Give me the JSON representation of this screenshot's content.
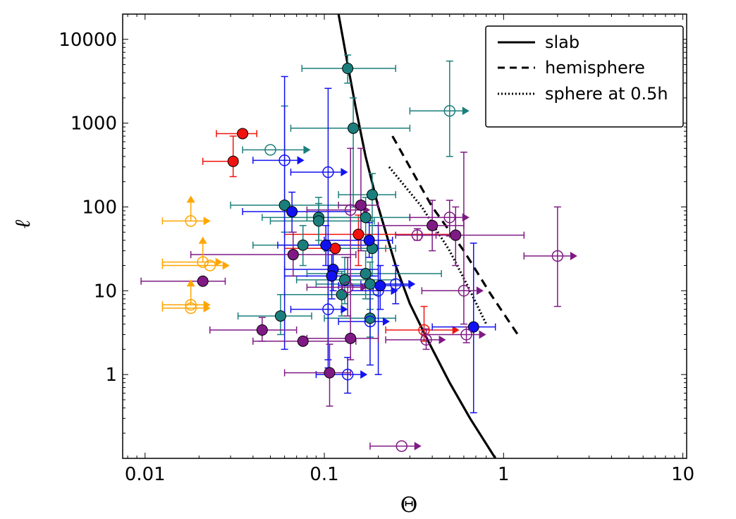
{
  "chart_data": {
    "type": "scatter",
    "xlabel": "Θ",
    "ylabel": "ℓ",
    "xscale": "log",
    "yscale": "log",
    "xlim": [
      0.0075,
      10.5
    ],
    "ylim": [
      0.1,
      20000
    ],
    "grid": false,
    "legend_position": "top-right",
    "x_tick_labels": [
      {
        "value": 0.01,
        "label": "0.01"
      },
      {
        "value": 0.1,
        "label": "0.1"
      },
      {
        "value": 1,
        "label": "1"
      },
      {
        "value": 10,
        "label": "10"
      }
    ],
    "y_tick_labels": [
      {
        "value": 1,
        "label": "1"
      },
      {
        "value": 10,
        "label": "10"
      },
      {
        "value": 100,
        "label": "100"
      },
      {
        "value": 1000,
        "label": "1000"
      },
      {
        "value": 10000,
        "label": "10000"
      }
    ],
    "lines": [
      {
        "name": "slab",
        "style": "solid",
        "x": [
          0.12,
          0.135,
          0.15,
          0.17,
          0.2,
          0.25,
          0.3,
          0.38,
          0.5,
          0.65,
          0.9
        ],
        "y": [
          20000,
          5000,
          1500,
          400,
          100,
          20,
          7,
          2.5,
          0.8,
          0.3,
          0.1
        ]
      },
      {
        "name": "hemisphere",
        "style": "dashed",
        "x": [
          0.24,
          0.4,
          0.6,
          0.85,
          1.2
        ],
        "y": [
          700,
          100,
          30,
          9,
          3
        ]
      },
      {
        "name": "sphere at 0.5h",
        "style": "dotted",
        "x": [
          0.23,
          0.35,
          0.5,
          0.65,
          0.8
        ],
        "y": [
          300,
          100,
          30,
          10,
          4
        ]
      }
    ],
    "colors": {
      "red": "#f0140e",
      "teal": "#1a7f7c",
      "blue": "#1212f0",
      "purple": "#7f1a84",
      "orange": "#ffa500"
    },
    "points": [
      {
        "x": 0.035,
        "y": 750,
        "c": "red",
        "f": true,
        "xe": [
          0.025,
          0.042
        ],
        "ye": null,
        "ax": false,
        "ay": false
      },
      {
        "x": 0.031,
        "y": 350,
        "c": "red",
        "f": true,
        "xe": [
          0.021,
          0.031
        ],
        "ye": [
          230,
          700
        ],
        "ax": false,
        "ay": false
      },
      {
        "x": 0.115,
        "y": 32,
        "c": "red",
        "f": true,
        "xe": [
          0.06,
          0.22
        ],
        "ye": null,
        "ax": false,
        "ay": false
      },
      {
        "x": 0.155,
        "y": 47,
        "c": "red",
        "f": true,
        "xe": [
          0.06,
          0.5
        ],
        "ye": [
          20,
          80
        ],
        "ax": false,
        "ay": false
      },
      {
        "x": 0.36,
        "y": 3.4,
        "c": "red",
        "f": false,
        "xe": [
          0.22,
          0.44
        ],
        "ye": [
          2.5,
          6.5
        ],
        "ax": true,
        "ay": false
      },
      {
        "x": 0.135,
        "y": 4500,
        "c": "teal",
        "f": true,
        "xe": [
          0.075,
          0.25
        ],
        "ye": [
          3000,
          6500
        ],
        "ax": false,
        "ay": false
      },
      {
        "x": 0.145,
        "y": 870,
        "c": "teal",
        "f": true,
        "xe": [
          0.065,
          0.3
        ],
        "ye": [
          100,
          2000
        ],
        "ax": false,
        "ay": false
      },
      {
        "x": 0.06,
        "y": 105,
        "c": "teal",
        "f": true,
        "xe": [
          0.03,
          0.14
        ],
        "ye": [
          50,
          1600
        ],
        "ax": false,
        "ay": false
      },
      {
        "x": 0.093,
        "y": 75,
        "c": "teal",
        "f": true,
        "xe": [
          0.045,
          0.17
        ],
        "ye": [
          40,
          130
        ],
        "ax": false,
        "ay": false
      },
      {
        "x": 0.093,
        "y": 68,
        "c": "teal",
        "f": true,
        "xe": [
          0.05,
          0.19
        ],
        "ye": [
          35,
          110
        ],
        "ax": false,
        "ay": false
      },
      {
        "x": 0.076,
        "y": 35,
        "c": "teal",
        "f": true,
        "xe": [
          0.04,
          0.16
        ],
        "ye": [
          20,
          60
        ],
        "ax": false,
        "ay": false
      },
      {
        "x": 0.17,
        "y": 75,
        "c": "teal",
        "f": true,
        "xe": [
          0.08,
          0.3
        ],
        "ye": [
          40,
          130
        ],
        "ax": false,
        "ay": false
      },
      {
        "x": 0.185,
        "y": 140,
        "c": "teal",
        "f": true,
        "xe": [
          0.12,
          0.25
        ],
        "ye": [
          60,
          250
        ],
        "ax": false,
        "ay": false
      },
      {
        "x": 0.185,
        "y": 32,
        "c": "teal",
        "f": true,
        "xe": [
          0.1,
          0.25
        ],
        "ye": [
          15,
          60
        ],
        "ax": false,
        "ay": false
      },
      {
        "x": 0.17,
        "y": 16,
        "c": "teal",
        "f": true,
        "xe": [
          0.08,
          0.45
        ],
        "ye": [
          8,
          30
        ],
        "ax": false,
        "ay": false
      },
      {
        "x": 0.13,
        "y": 13.5,
        "c": "teal",
        "f": true,
        "xe": [
          0.07,
          0.25
        ],
        "ye": [
          7,
          25
        ],
        "ax": false,
        "ay": false
      },
      {
        "x": 0.125,
        "y": 9,
        "c": "teal",
        "f": true,
        "xe": [
          0.06,
          0.2
        ],
        "ye": [
          5,
          17
        ],
        "ax": false,
        "ay": false
      },
      {
        "x": 0.18,
        "y": 12,
        "c": "teal",
        "f": true,
        "xe": [
          0.09,
          0.3
        ],
        "ye": [
          6,
          22
        ],
        "ax": false,
        "ay": false
      },
      {
        "x": 0.057,
        "y": 5,
        "c": "teal",
        "f": true,
        "xe": [
          0.033,
          0.085
        ],
        "ye": [
          3,
          9
        ],
        "ax": false,
        "ay": false
      },
      {
        "x": 0.18,
        "y": 4.7,
        "c": "teal",
        "f": true,
        "xe": [
          0.1,
          0.25
        ],
        "ye": [
          2.8,
          8
        ],
        "ax": false,
        "ay": false
      },
      {
        "x": 0.05,
        "y": 480,
        "c": "teal",
        "f": false,
        "xe": [
          0.035,
          0.065
        ],
        "ye": null,
        "ax": true,
        "ay": false
      },
      {
        "x": 0.5,
        "y": 1400,
        "c": "teal",
        "f": false,
        "xe": [
          0.3,
          0.5
        ],
        "ye": [
          400,
          5500
        ],
        "ax": true,
        "ay": false
      },
      {
        "x": 0.066,
        "y": 88,
        "c": "blue",
        "f": true,
        "xe": [
          0.035,
          0.14
        ],
        "ye": [
          50,
          150
        ],
        "ax": false,
        "ay": false
      },
      {
        "x": 0.102,
        "y": 35,
        "c": "blue",
        "f": true,
        "xe": [
          0.055,
          0.2
        ],
        "ye": [
          20,
          60
        ],
        "ax": false,
        "ay": false
      },
      {
        "x": 0.178,
        "y": 40,
        "c": "blue",
        "f": true,
        "xe": [
          0.1,
          0.24
        ],
        "ye": [
          25,
          65
        ],
        "ax": false,
        "ay": false
      },
      {
        "x": 0.112,
        "y": 18,
        "c": "blue",
        "f": true,
        "xe": [
          0.06,
          0.2
        ],
        "ye": [
          10,
          30
        ],
        "ax": false,
        "ay": false
      },
      {
        "x": 0.11,
        "y": 15,
        "c": "blue",
        "f": true,
        "xe": [
          0.06,
          0.2
        ],
        "ye": [
          8,
          27
        ],
        "ax": false,
        "ay": false
      },
      {
        "x": 0.205,
        "y": 11.5,
        "c": "blue",
        "f": true,
        "xe": [
          0.12,
          0.3
        ],
        "ye": [
          6,
          20
        ],
        "ax": false,
        "ay": false
      },
      {
        "x": 0.68,
        "y": 3.7,
        "c": "blue",
        "f": true,
        "xe": [
          0.4,
          0.9
        ],
        "ye": [
          0.35,
          37
        ],
        "ax": false,
        "ay": false
      },
      {
        "x": 0.06,
        "y": 360,
        "c": "blue",
        "f": false,
        "xe": [
          0.04,
          0.06
        ],
        "ye": [
          2,
          3600
        ],
        "ax": true,
        "ay": false
      },
      {
        "x": 0.105,
        "y": 260,
        "c": "blue",
        "f": false,
        "xe": [
          0.065,
          0.105
        ],
        "ye": [
          1.5,
          2600
        ],
        "ax": true,
        "ay": false
      },
      {
        "x": 0.105,
        "y": 6,
        "c": "blue",
        "f": false,
        "xe": [
          0.065,
          0.105
        ],
        "ye": [
          1.2,
          30
        ],
        "ax": true,
        "ay": false
      },
      {
        "x": 0.18,
        "y": 4.3,
        "c": "blue",
        "f": false,
        "xe": [
          0.12,
          0.18
        ],
        "ye": [
          1.3,
          15
        ],
        "ax": true,
        "ay": false
      },
      {
        "x": 0.135,
        "y": 1,
        "c": "blue",
        "f": false,
        "xe": [
          0.09,
          0.135
        ],
        "ye": [
          0.6,
          1.6
        ],
        "ax": true,
        "ay": false
      },
      {
        "x": 0.25,
        "y": 12,
        "c": "blue",
        "f": false,
        "xe": [
          0.16,
          0.25
        ],
        "ye": [
          7,
          20
        ],
        "ax": true,
        "ay": false
      },
      {
        "x": 0.2,
        "y": 10,
        "c": "blue",
        "f": false,
        "xe": [
          0.14,
          0.2
        ],
        "ye": [
          1,
          60
        ],
        "ax": true,
        "ay": false
      },
      {
        "x": 0.021,
        "y": 13,
        "c": "purple",
        "f": true,
        "xe": [
          0.0095,
          0.028
        ],
        "ye": null,
        "ax": false,
        "ay": false
      },
      {
        "x": 0.067,
        "y": 27,
        "c": "purple",
        "f": true,
        "xe": [
          0.018,
          0.15
        ],
        "ye": [
          15,
          50
        ],
        "ax": false,
        "ay": false
      },
      {
        "x": 0.045,
        "y": 3.4,
        "c": "purple",
        "f": true,
        "xe": [
          0.023,
          0.07
        ],
        "ye": [
          2.5,
          4.8
        ],
        "ax": false,
        "ay": false
      },
      {
        "x": 0.076,
        "y": 2.5,
        "c": "purple",
        "f": true,
        "xe": [
          0.04,
          0.15
        ],
        "ye": null,
        "ax": false,
        "ay": false
      },
      {
        "x": 0.14,
        "y": 2.7,
        "c": "purple",
        "f": true,
        "xe": [
          0.08,
          0.2
        ],
        "ye": null,
        "ax": false,
        "ay": false
      },
      {
        "x": 0.107,
        "y": 1.05,
        "c": "purple",
        "f": true,
        "xe": [
          0.06,
          0.14
        ],
        "ye": [
          0.42,
          2.3
        ],
        "ax": false,
        "ay": false
      },
      {
        "x": 0.16,
        "y": 105,
        "c": "purple",
        "f": true,
        "xe": [
          0.12,
          0.2
        ],
        "ye": [
          30,
          500
        ],
        "ax": false,
        "ay": false
      },
      {
        "x": 0.4,
        "y": 60,
        "c": "purple",
        "f": true,
        "xe": [
          0.2,
          0.6
        ],
        "ye": [
          30,
          120
        ],
        "ax": false,
        "ay": false
      },
      {
        "x": 0.54,
        "y": 46,
        "c": "purple",
        "f": true,
        "xe": [
          0.35,
          1.3
        ],
        "ye": [
          20,
          100
        ],
        "ax": false,
        "ay": false
      },
      {
        "x": 0.5,
        "y": 75,
        "c": "purple",
        "f": false,
        "xe": [
          0.3,
          0.5
        ],
        "ye": [
          45,
          120
        ],
        "ax": true,
        "ay": false
      },
      {
        "x": 0.33,
        "y": 46,
        "c": "purple",
        "f": false,
        "xe": [
          0.25,
          0.42
        ],
        "ye": [
          40,
          55
        ],
        "ax": false,
        "ay": false
      },
      {
        "x": 2.0,
        "y": 26,
        "c": "purple",
        "f": false,
        "xe": [
          1.3,
          2.0
        ],
        "ye": [
          6.5,
          100
        ],
        "ax": true,
        "ay": false
      },
      {
        "x": 0.6,
        "y": 10,
        "c": "purple",
        "f": false,
        "xe": [
          0.35,
          0.6
        ],
        "ye": [
          4,
          450
        ],
        "ax": true,
        "ay": false
      },
      {
        "x": 0.62,
        "y": 3,
        "c": "purple",
        "f": false,
        "xe": [
          0.35,
          0.62
        ],
        "ye": [
          2.4,
          3.7
        ],
        "ax": true,
        "ay": false
      },
      {
        "x": 0.37,
        "y": 2.6,
        "c": "purple",
        "f": false,
        "xe": [
          0.22,
          0.37
        ],
        "ye": [
          2,
          3.5
        ],
        "ax": true,
        "ay": false
      },
      {
        "x": 0.14,
        "y": 92,
        "c": "purple",
        "f": false,
        "xe": [
          0.08,
          0.14
        ],
        "ye": [
          1.5,
          500
        ],
        "ax": true,
        "ay": false
      },
      {
        "x": 0.135,
        "y": 11,
        "c": "purple",
        "f": false,
        "xe": [
          0.08,
          0.135
        ],
        "ye": [
          5,
          25
        ],
        "ax": true,
        "ay": false
      },
      {
        "x": 0.27,
        "y": 0.14,
        "c": "purple",
        "f": false,
        "xe": [
          0.18,
          0.27
        ],
        "ye": null,
        "ax": true,
        "ay": false
      },
      {
        "x": 0.018,
        "y": 68,
        "c": "orange",
        "f": false,
        "xe": [
          0.0125,
          0.018
        ],
        "ye": null,
        "ax": true,
        "ay": true
      },
      {
        "x": 0.021,
        "y": 22,
        "c": "orange",
        "f": false,
        "xe": [
          0.0125,
          0.021
        ],
        "ye": null,
        "ax": true,
        "ay": true
      },
      {
        "x": 0.023,
        "y": 20,
        "c": "orange",
        "f": false,
        "xe": [
          0.0125,
          0.023
        ],
        "ye": null,
        "ax": true,
        "ay": false
      },
      {
        "x": 0.018,
        "y": 6.8,
        "c": "orange",
        "f": false,
        "xe": [
          0.0125,
          0.018
        ],
        "ye": null,
        "ax": true,
        "ay": true
      },
      {
        "x": 0.018,
        "y": 6.2,
        "c": "orange",
        "f": false,
        "xe": [
          0.0125,
          0.018
        ],
        "ye": null,
        "ax": true,
        "ay": false
      }
    ]
  }
}
